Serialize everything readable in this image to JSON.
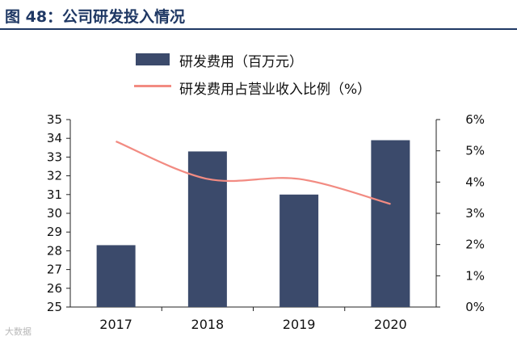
{
  "header": {
    "title": "图 48：公司研发投入情况"
  },
  "watermark": "大数据",
  "colors": {
    "bar": "#3b4a6b",
    "line": "#f28b82",
    "title": "#1f3864"
  },
  "chart_data": {
    "type": "bar",
    "categories": [
      "2017",
      "2018",
      "2019",
      "2020"
    ],
    "series": [
      {
        "name": "研发费用（百万元）",
        "type": "bar",
        "axis": "left",
        "values": [
          28.3,
          33.3,
          31.0,
          33.9
        ]
      },
      {
        "name": "研发费用占营业收入比例（%）",
        "type": "line",
        "axis": "right",
        "values": [
          5.3,
          4.1,
          4.1,
          3.3
        ]
      }
    ],
    "y_left": {
      "lim": [
        25,
        35
      ],
      "ticks": [
        "25",
        "26",
        "27",
        "28",
        "29",
        "30",
        "31",
        "32",
        "33",
        "34",
        "35"
      ]
    },
    "y_right": {
      "lim": [
        0,
        6
      ],
      "ticks": [
        "0%",
        "1%",
        "2%",
        "3%",
        "4%",
        "5%",
        "6%"
      ]
    },
    "legend_position": "top",
    "grid": false
  }
}
